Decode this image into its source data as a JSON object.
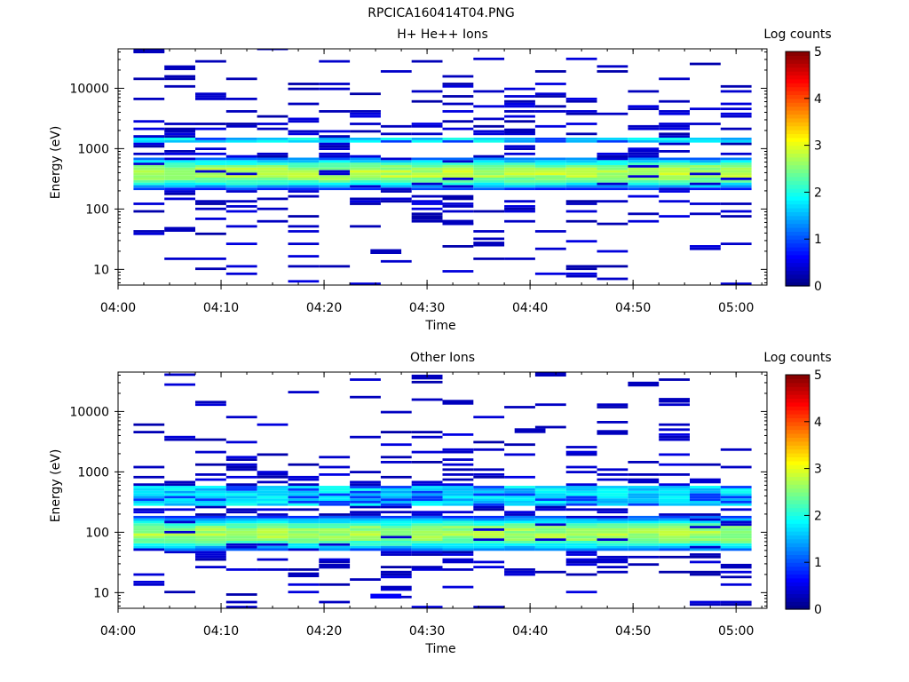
{
  "figure": {
    "title": "RPCICA160414T04.PNG"
  },
  "chart_data": [
    {
      "type": "heatmap",
      "title": "H+ He++ Ions",
      "xlabel": "Time",
      "ylabel": "Energy (eV)",
      "x_range": [
        "04:00",
        "05:03"
      ],
      "x_ticks": [
        "04:00",
        "04:10",
        "04:20",
        "04:30",
        "04:40",
        "04:50",
        "05:00"
      ],
      "y_scale": "log",
      "y_range": [
        5.5,
        45000
      ],
      "y_ticks": [
        10,
        100,
        1000,
        10000
      ],
      "grid": false,
      "colorbar": {
        "label": "Log counts",
        "range": [
          0,
          5
        ],
        "ticks": [
          0,
          1,
          2,
          3,
          4,
          5
        ],
        "colormap": "jet"
      },
      "time_bins": [
        "04:03",
        "04:06",
        "04:09",
        "04:12",
        "04:15",
        "04:18",
        "04:21",
        "04:24",
        "04:27",
        "04:30",
        "04:33",
        "04:36",
        "04:39",
        "04:42",
        "04:45",
        "04:48",
        "04:51",
        "04:54",
        "04:57",
        "05:00"
      ],
      "dominant_band_eV": [
        200,
        700
      ],
      "secondary_band_eV": [
        1150,
        1500
      ],
      "peak_log_counts": 2.8,
      "sparse_events": [
        {
          "time": "04:03",
          "energy_eV": 38000,
          "log_counts": 0.3
        },
        {
          "time": "04:06",
          "energy_eV": 20000,
          "log_counts": 0.3
        },
        {
          "time": "04:06",
          "energy_eV": 42,
          "log_counts": 0.3
        },
        {
          "time": "04:26",
          "energy_eV": 18,
          "log_counts": 0.3
        },
        {
          "time": "04:33",
          "energy_eV": 55,
          "log_counts": 0.3
        },
        {
          "time": "04:36",
          "energy_eV": 24,
          "log_counts": 0.3
        },
        {
          "time": "04:39",
          "energy_eV": 1800,
          "log_counts": 0.3
        }
      ]
    },
    {
      "type": "heatmap",
      "title": "Other Ions",
      "xlabel": "Time",
      "ylabel": "Energy (eV)",
      "x_range": [
        "04:00",
        "05:03"
      ],
      "x_ticks": [
        "04:00",
        "04:10",
        "04:20",
        "04:30",
        "04:40",
        "04:50",
        "05:00"
      ],
      "y_scale": "log",
      "y_range": [
        5.5,
        45000
      ],
      "y_ticks": [
        10,
        100,
        1000,
        10000
      ],
      "grid": false,
      "colorbar": {
        "label": "Log counts",
        "range": [
          0,
          5
        ],
        "ticks": [
          0,
          1,
          2,
          3,
          4,
          5
        ],
        "colormap": "jet"
      },
      "time_bins": [
        "04:03",
        "04:06",
        "04:09",
        "04:12",
        "04:15",
        "04:18",
        "04:21",
        "04:24",
        "04:27",
        "04:30",
        "04:33",
        "04:36",
        "04:39",
        "04:42",
        "04:45",
        "04:48",
        "04:51",
        "04:54",
        "04:57",
        "05:00"
      ],
      "dominant_band_eV": [
        45,
        180
      ],
      "secondary_band_eV": [
        250,
        550
      ],
      "peak_log_counts": 2.7,
      "sparse_events": [
        {
          "time": "04:26",
          "energy_eV": 8,
          "log_counts": 0.6
        },
        {
          "time": "04:30",
          "energy_eV": 34000,
          "log_counts": 0.3
        },
        {
          "time": "04:33",
          "energy_eV": 13000,
          "log_counts": 0.3
        },
        {
          "time": "04:40",
          "energy_eV": 4400,
          "log_counts": 0.3
        },
        {
          "time": "04:42",
          "energy_eV": 38000,
          "log_counts": 0.3
        },
        {
          "time": "04:48",
          "energy_eV": 4100,
          "log_counts": 0.3
        },
        {
          "time": "04:51",
          "energy_eV": 26000,
          "log_counts": 0.3
        },
        {
          "time": "04:54",
          "energy_eV": 14000,
          "log_counts": 0.3
        },
        {
          "time": "04:18",
          "energy_eV": 18,
          "log_counts": 0.3
        },
        {
          "time": "04:21",
          "energy_eV": 25,
          "log_counts": 0.3
        },
        {
          "time": "05:00",
          "energy_eV": 25,
          "log_counts": 0.3
        }
      ]
    }
  ]
}
